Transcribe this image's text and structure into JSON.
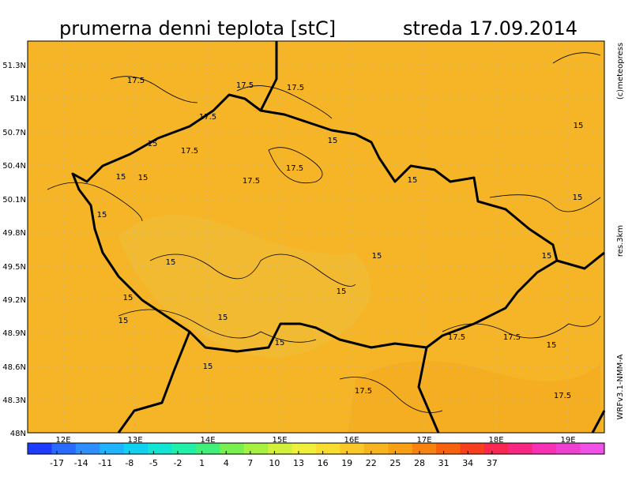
{
  "title": "prumerna denni teplota [stC]",
  "date": "streda 17.09.2014",
  "credit": "(c)meteopress",
  "resolution": "res.3km",
  "model": "WRFv3.1-NMM-A",
  "lat_labels": [
    "51.3N",
    "51N",
    "50.7N",
    "50.4N",
    "50.1N",
    "49.8N",
    "49.5N",
    "49.2N",
    "48.9N",
    "48.6N",
    "48.3N",
    "48N"
  ],
  "lon_labels": [
    "12E",
    "13E",
    "14E",
    "15E",
    "16E",
    "17E",
    "18E",
    "19E"
  ],
  "contour_labels": [
    "17.5",
    "17.5",
    "17.5",
    "17.5",
    "17.5",
    "17.5",
    "17.5",
    "17.5",
    "17.5",
    "17.5",
    "17.5",
    "15",
    "15",
    "15",
    "15",
    "15",
    "15",
    "15",
    "15",
    "15",
    "15",
    "15",
    "15",
    "15",
    "15",
    "15",
    "15",
    "15",
    "15"
  ],
  "colorbar": {
    "ticks": [
      -17,
      -14,
      -11,
      -8,
      -5,
      -2,
      1,
      4,
      7,
      10,
      13,
      16,
      19,
      22,
      25,
      28,
      31,
      34,
      37
    ],
    "colors": [
      "#1e3cff",
      "#2a6bff",
      "#2f8fff",
      "#20b4ff",
      "#10d2f0",
      "#10e6d2",
      "#20f0a8",
      "#40f07a",
      "#78f050",
      "#a8f040",
      "#d2f03c",
      "#f0f03c",
      "#f8dc30",
      "#fac828",
      "#f8b41e",
      "#f8a014",
      "#f8820f",
      "#f8620f",
      "#f8401e",
      "#f82850",
      "#f82882",
      "#f830b4",
      "#f040d2",
      "#f050e6"
    ]
  }
}
